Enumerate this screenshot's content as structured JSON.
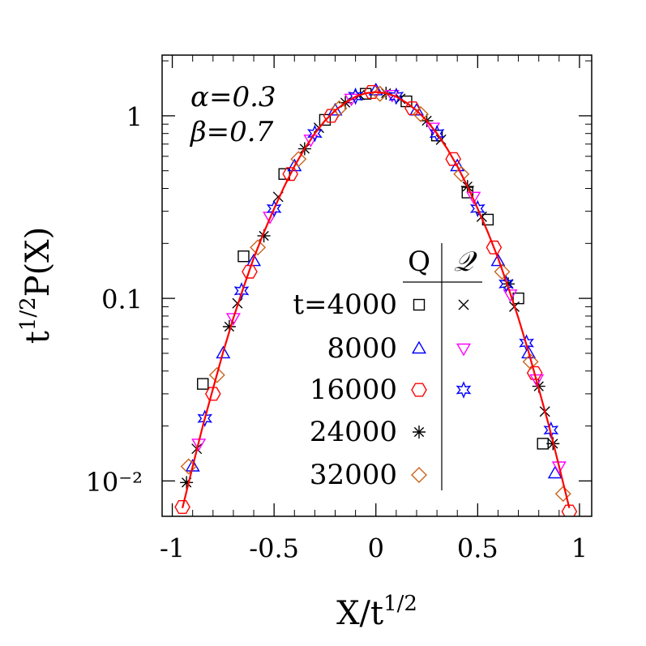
{
  "chart_data": {
    "type": "scatter",
    "xlabel": [
      "X/t",
      "1/2"
    ],
    "ylabel": [
      "t",
      "1/2",
      "P(X)"
    ],
    "annotations": [
      "α=0.3",
      "β=0.7"
    ],
    "log_y": true,
    "xlim": [
      -1.05,
      1.06
    ],
    "ylim": [
      0.0064,
      2.15
    ],
    "xticks": [
      -1,
      -0.5,
      0,
      0.5,
      1
    ],
    "xminorticks": [
      -0.9,
      -0.8,
      -0.7,
      -0.6,
      -0.4,
      -0.3,
      -0.2,
      -0.1,
      0.1,
      0.2,
      0.3,
      0.4,
      0.6,
      0.7,
      0.8,
      0.9
    ],
    "yticks": [
      {
        "value": 0.01,
        "label": "10⁻²"
      },
      0.1,
      1
    ],
    "yminorticks": [
      0.02,
      0.03,
      0.04,
      0.05,
      0.06,
      0.07,
      0.08,
      0.09,
      0.2,
      0.3,
      0.4,
      0.5,
      0.6,
      0.7,
      0.8,
      0.9,
      2
    ],
    "legend": {
      "columns": [
        "Q",
        "𝒬"
      ],
      "rows": [
        "t=4000",
        "8000",
        "16000",
        "24000",
        "32000"
      ]
    },
    "curve": {
      "color": "#ff0000",
      "x": [
        -0.95,
        -0.9,
        -0.85,
        -0.8,
        -0.75,
        -0.7,
        -0.65,
        -0.6,
        -0.55,
        -0.5,
        -0.45,
        -0.4,
        -0.35,
        -0.3,
        -0.25,
        -0.2,
        -0.15,
        -0.1,
        -0.05,
        0,
        0.05,
        0.1,
        0.15,
        0.2,
        0.25,
        0.3,
        0.35,
        0.4,
        0.45,
        0.5,
        0.55,
        0.6,
        0.65,
        0.7,
        0.75,
        0.8,
        0.85,
        0.9,
        0.95
      ],
      "values": [
        0.0071,
        0.012,
        0.02,
        0.032,
        0.051,
        0.078,
        0.115,
        0.166,
        0.23,
        0.31,
        0.41,
        0.53,
        0.66,
        0.8,
        0.94,
        1.07,
        1.18,
        1.274,
        1.33,
        1.35,
        1.33,
        1.274,
        1.18,
        1.07,
        0.94,
        0.8,
        0.66,
        0.53,
        0.41,
        0.31,
        0.23,
        0.166,
        0.115,
        0.078,
        0.051,
        0.032,
        0.02,
        0.012,
        0.0071
      ]
    },
    "series": [
      {
        "row": 0,
        "column": 0,
        "marker": "square",
        "color": "#000000",
        "x": [
          -0.85,
          -0.65,
          -0.45,
          -0.25,
          -0.05,
          0.15,
          0.3,
          0.45,
          0.55,
          0.7,
          0.82
        ],
        "values": [
          0.034,
          0.17,
          0.48,
          0.95,
          1.32,
          1.2,
          0.78,
          0.38,
          0.27,
          0.1,
          0.016
        ]
      },
      {
        "row": 1,
        "column": 0,
        "marker": "triangle",
        "color": "#0000ff",
        "x": [
          -0.9,
          -0.75,
          -0.6,
          -0.4,
          -0.2,
          0,
          0.2,
          0.4,
          0.6,
          0.75,
          0.88
        ],
        "values": [
          0.012,
          0.05,
          0.16,
          0.53,
          1.07,
          1.38,
          1.07,
          0.53,
          0.16,
          0.05,
          0.011
        ]
      },
      {
        "row": 2,
        "column": 0,
        "marker": "hexagon",
        "color": "#ff0000",
        "x": [
          -0.95,
          -0.8,
          -0.62,
          -0.42,
          -0.22,
          -0.02,
          0.18,
          0.38,
          0.58,
          0.78,
          0.95
        ],
        "values": [
          0.0072,
          0.03,
          0.14,
          0.48,
          1.0,
          1.35,
          1.1,
          0.58,
          0.19,
          0.039,
          0.0068
        ]
      },
      {
        "row": 3,
        "column": 0,
        "marker": "asterisk",
        "color": "#000000",
        "x": [
          -0.93,
          -0.72,
          -0.55,
          -0.35,
          -0.15,
          0.05,
          0.25,
          0.45,
          0.65,
          0.8,
          0.87
        ],
        "values": [
          0.0098,
          0.07,
          0.22,
          0.66,
          1.18,
          1.33,
          0.94,
          0.41,
          0.12,
          0.033,
          0.016
        ]
      },
      {
        "row": 4,
        "column": 0,
        "marker": "diamond",
        "color": "#c8641e",
        "x": [
          -0.92,
          -0.78,
          -0.58,
          -0.38,
          -0.18,
          0.02,
          0.22,
          0.42,
          0.62,
          0.76,
          0.92
        ],
        "values": [
          0.012,
          0.038,
          0.19,
          0.58,
          1.1,
          1.32,
          1.02,
          0.48,
          0.14,
          0.045,
          0.0085
        ]
      },
      {
        "row": 0,
        "column": 1,
        "marker": "cross",
        "color": "#000000",
        "x": [
          -0.88,
          -0.68,
          -0.48,
          -0.28,
          -0.08,
          0.12,
          0.32,
          0.52,
          0.68,
          0.83
        ],
        "values": [
          0.015,
          0.094,
          0.36,
          0.86,
          1.3,
          1.24,
          0.74,
          0.28,
          0.09,
          0.024
        ]
      },
      {
        "row": 1,
        "column": 1,
        "marker": "triangle-down",
        "color": "#ff00ff",
        "x": [
          -0.87,
          -0.7,
          -0.52,
          -0.32,
          -0.12,
          0.08,
          0.28,
          0.48,
          0.66,
          0.79,
          0.9
        ],
        "values": [
          0.016,
          0.078,
          0.28,
          0.74,
          1.24,
          1.3,
          0.86,
          0.36,
          0.105,
          0.036,
          0.012
        ]
      },
      {
        "row": 2,
        "column": 1,
        "marker": "star",
        "color": "#0000ff",
        "x": [
          -0.84,
          -0.66,
          -0.5,
          -0.3,
          -0.1,
          0.1,
          0.3,
          0.5,
          0.64,
          0.74,
          0.86
        ],
        "values": [
          0.022,
          0.11,
          0.31,
          0.8,
          1.28,
          1.28,
          0.8,
          0.31,
          0.12,
          0.057,
          0.019
        ]
      }
    ]
  }
}
